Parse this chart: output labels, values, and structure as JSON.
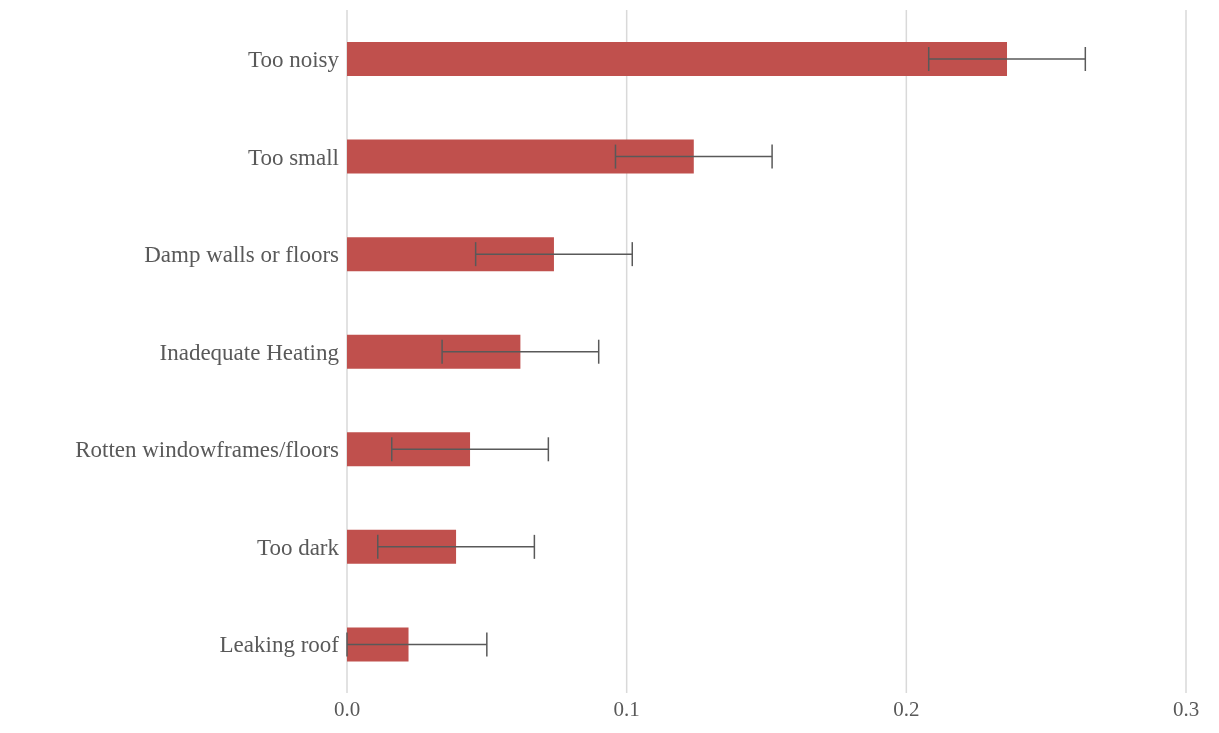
{
  "chart_data": {
    "type": "bar",
    "orientation": "horizontal",
    "categories": [
      "Too noisy",
      "Too small",
      "Damp walls or floors",
      "Inadequate Heating",
      "Rotten windowframes/floors",
      "Too dark",
      "Leaking roof"
    ],
    "values": [
      0.236,
      0.124,
      0.074,
      0.062,
      0.044,
      0.039,
      0.022
    ],
    "errors": [
      0.028,
      0.028,
      0.028,
      0.028,
      0.028,
      0.028,
      [
        0,
        0.05
      ]
    ],
    "color": "#c0504d",
    "xlim": [
      0,
      0.3
    ],
    "xticks": [
      {
        "value": 0,
        "label": "0.0"
      },
      0.1,
      0.2,
      0.3
    ],
    "grid": "x",
    "legend": false
  }
}
